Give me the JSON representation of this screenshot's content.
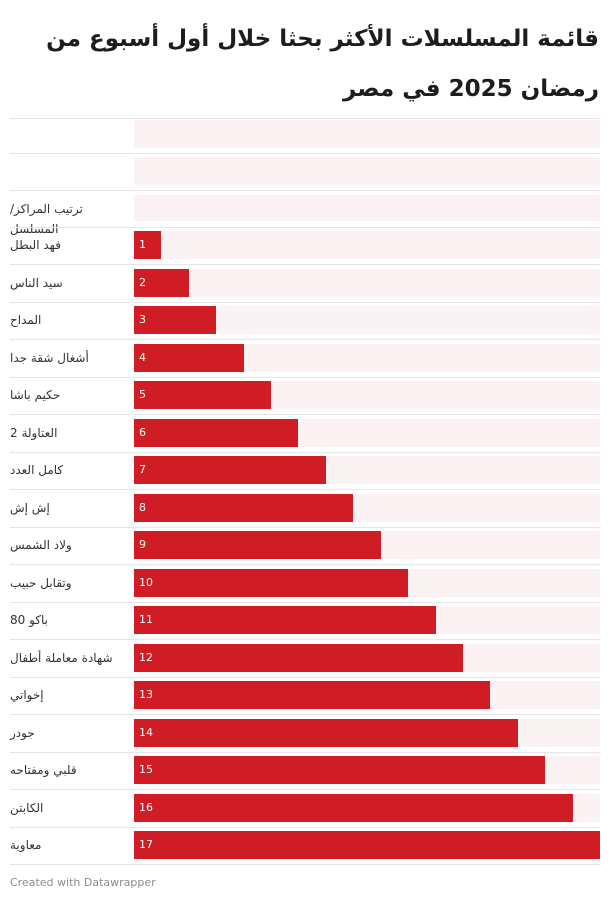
{
  "title": "قائمة المسلسلات الأكثر بحثا خلال أول أسبوع من رمضان 2025 في مصر",
  "header_label": "ترتيب المراكز/ المسلسل",
  "footer": "Created with Datawrapper",
  "colors": {
    "bar": "#d01c24",
    "track": "#fbf3f3",
    "separator": "#e6e6e6"
  },
  "chart_data": {
    "type": "bar",
    "orientation": "horizontal",
    "categories": [
      "فهد البطل",
      "سيد الناس",
      "المداح",
      "أشغال شقة جدا",
      "حكيم باشا",
      "العتاولة 2",
      "كامل العدد",
      "إش إش",
      "ولاد الشمس",
      "وتقابل حبيب",
      "باكو 80",
      "شهادة معاملة أطفال",
      "إخواتي",
      "جودر",
      "قلبي ومفتاحه",
      "الكابتن",
      "معاوية"
    ],
    "values": [
      1,
      2,
      3,
      4,
      5,
      6,
      7,
      8,
      9,
      10,
      11,
      12,
      13,
      14,
      15,
      16,
      17
    ],
    "value_labels": [
      "1",
      "2",
      "3",
      "4",
      "5",
      "6",
      "7",
      "8",
      "9",
      "10",
      "11",
      "12",
      "13",
      "14",
      "15",
      "16",
      "17"
    ],
    "xlim": [
      0,
      17
    ],
    "grid": false
  }
}
